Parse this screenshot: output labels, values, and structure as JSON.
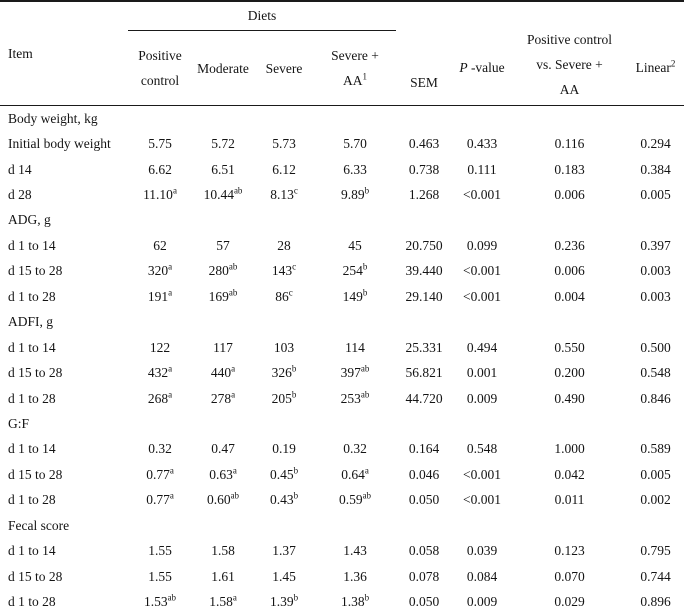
{
  "table": {
    "header": {
      "item": "Item",
      "diets_group": "Diets",
      "diet_cols": [
        {
          "id": "positive-control",
          "lines": [
            "Positive",
            "control"
          ],
          "sup": ""
        },
        {
          "id": "moderate",
          "lines": [
            "Moderate"
          ],
          "sup": ""
        },
        {
          "id": "severe",
          "lines": [
            "Severe"
          ],
          "sup": ""
        },
        {
          "id": "severe-aa",
          "lines": [
            "Severe +",
            "AA"
          ],
          "sup": "1"
        }
      ],
      "sem": "SEM",
      "p_value": {
        "italic": "P",
        "rest": " -value"
      },
      "contrast_lines": [
        "Positive control",
        "vs. Severe +",
        "AA"
      ],
      "linear": {
        "label": "Linear",
        "sup": "2"
      }
    },
    "rows": [
      {
        "type": "section",
        "label": "Body weight, kg"
      },
      {
        "type": "data",
        "label": "Initial body weight",
        "cells": [
          {
            "v": "5.75"
          },
          {
            "v": "5.72"
          },
          {
            "v": "5.73"
          },
          {
            "v": "5.70"
          },
          {
            "v": "0.463"
          },
          {
            "v": "0.433"
          },
          {
            "v": "0.116"
          },
          {
            "v": "0.294"
          }
        ]
      },
      {
        "type": "data",
        "label": "d 14",
        "cells": [
          {
            "v": "6.62"
          },
          {
            "v": "6.51"
          },
          {
            "v": "6.12"
          },
          {
            "v": "6.33"
          },
          {
            "v": "0.738"
          },
          {
            "v": "0.111"
          },
          {
            "v": "0.183"
          },
          {
            "v": "0.384"
          }
        ]
      },
      {
        "type": "data",
        "label": "d 28",
        "cells": [
          {
            "v": "11.10",
            "s": "a"
          },
          {
            "v": "10.44",
            "s": "ab"
          },
          {
            "v": "8.13",
            "s": "c"
          },
          {
            "v": "9.89",
            "s": "b"
          },
          {
            "v": "1.268"
          },
          {
            "v": "<0.001"
          },
          {
            "v": "0.006"
          },
          {
            "v": "0.005"
          }
        ]
      },
      {
        "type": "section",
        "label": "ADG, g"
      },
      {
        "type": "data",
        "label": "d 1 to 14",
        "cells": [
          {
            "v": "62"
          },
          {
            "v": "57"
          },
          {
            "v": "28"
          },
          {
            "v": "45"
          },
          {
            "v": "20.750"
          },
          {
            "v": "0.099"
          },
          {
            "v": "0.236"
          },
          {
            "v": "0.397"
          }
        ]
      },
      {
        "type": "data",
        "label": "d 15 to 28",
        "cells": [
          {
            "v": "320",
            "s": "a"
          },
          {
            "v": "280",
            "s": "ab"
          },
          {
            "v": "143",
            "s": "c"
          },
          {
            "v": "254",
            "s": "b"
          },
          {
            "v": "39.440"
          },
          {
            "v": "<0.001"
          },
          {
            "v": "0.006"
          },
          {
            "v": "0.003"
          }
        ]
      },
      {
        "type": "data",
        "label": "d 1 to 28",
        "cells": [
          {
            "v": "191",
            "s": "a"
          },
          {
            "v": "169",
            "s": "ab"
          },
          {
            "v": "86",
            "s": "c"
          },
          {
            "v": "149",
            "s": "b"
          },
          {
            "v": "29.140"
          },
          {
            "v": "<0.001"
          },
          {
            "v": "0.004"
          },
          {
            "v": "0.003"
          }
        ]
      },
      {
        "type": "section",
        "label": "ADFI, g"
      },
      {
        "type": "data",
        "label": "d 1 to 14",
        "cells": [
          {
            "v": "122"
          },
          {
            "v": "117"
          },
          {
            "v": "103"
          },
          {
            "v": "114"
          },
          {
            "v": "25.331"
          },
          {
            "v": "0.494"
          },
          {
            "v": "0.550"
          },
          {
            "v": "0.500"
          }
        ]
      },
      {
        "type": "data",
        "label": "d 15 to 28",
        "cells": [
          {
            "v": "432",
            "s": "a"
          },
          {
            "v": "440",
            "s": "a"
          },
          {
            "v": "326",
            "s": "b"
          },
          {
            "v": "397",
            "s": "ab"
          },
          {
            "v": "56.821"
          },
          {
            "v": "0.001"
          },
          {
            "v": "0.200"
          },
          {
            "v": "0.548"
          }
        ]
      },
      {
        "type": "data",
        "label": "d 1 to 28",
        "cells": [
          {
            "v": "268",
            "s": "a"
          },
          {
            "v": "278",
            "s": "a"
          },
          {
            "v": "205",
            "s": "b"
          },
          {
            "v": "253",
            "s": "ab"
          },
          {
            "v": "44.720"
          },
          {
            "v": "0.009"
          },
          {
            "v": "0.490"
          },
          {
            "v": "0.846"
          }
        ]
      },
      {
        "type": "section",
        "label": "G:F"
      },
      {
        "type": "data",
        "label": "d 1 to 14",
        "cells": [
          {
            "v": "0.32"
          },
          {
            "v": "0.47"
          },
          {
            "v": "0.19"
          },
          {
            "v": "0.32"
          },
          {
            "v": "0.164"
          },
          {
            "v": "0.548"
          },
          {
            "v": "1.000"
          },
          {
            "v": "0.589"
          }
        ]
      },
      {
        "type": "data",
        "label": "d 15 to 28",
        "cells": [
          {
            "v": "0.77",
            "s": "a"
          },
          {
            "v": "0.63",
            "s": "a"
          },
          {
            "v": "0.45",
            "s": "b"
          },
          {
            "v": "0.64",
            "s": "a"
          },
          {
            "v": "0.046"
          },
          {
            "v": "<0.001"
          },
          {
            "v": "0.042"
          },
          {
            "v": "0.005"
          }
        ]
      },
      {
        "type": "data",
        "label": "d 1 to 28",
        "cells": [
          {
            "v": "0.77",
            "s": "a"
          },
          {
            "v": "0.60",
            "s": "ab"
          },
          {
            "v": "0.43",
            "s": "b"
          },
          {
            "v": "0.59",
            "s": "ab"
          },
          {
            "v": "0.050"
          },
          {
            "v": "<0.001"
          },
          {
            "v": "0.011"
          },
          {
            "v": "0.002"
          }
        ]
      },
      {
        "type": "section",
        "label": "Fecal score"
      },
      {
        "type": "data",
        "label": "d 1 to 14",
        "cells": [
          {
            "v": "1.55"
          },
          {
            "v": "1.58"
          },
          {
            "v": "1.37"
          },
          {
            "v": "1.43"
          },
          {
            "v": "0.058"
          },
          {
            "v": "0.039"
          },
          {
            "v": "0.123"
          },
          {
            "v": "0.795"
          }
        ]
      },
      {
        "type": "data",
        "label": "d 15 to 28",
        "cells": [
          {
            "v": "1.55"
          },
          {
            "v": "1.61"
          },
          {
            "v": "1.45"
          },
          {
            "v": "1.36"
          },
          {
            "v": "0.078"
          },
          {
            "v": "0.084"
          },
          {
            "v": "0.070"
          },
          {
            "v": "0.744"
          }
        ]
      },
      {
        "type": "data",
        "label": "d 1 to 28",
        "cells": [
          {
            "v": "1.53",
            "s": "ab"
          },
          {
            "v": "1.58",
            "s": "a"
          },
          {
            "v": "1.39",
            "s": "b"
          },
          {
            "v": "1.38",
            "s": "b"
          },
          {
            "v": "0.050"
          },
          {
            "v": "0.009"
          },
          {
            "v": "0.029"
          },
          {
            "v": "0.896"
          }
        ]
      }
    ]
  }
}
